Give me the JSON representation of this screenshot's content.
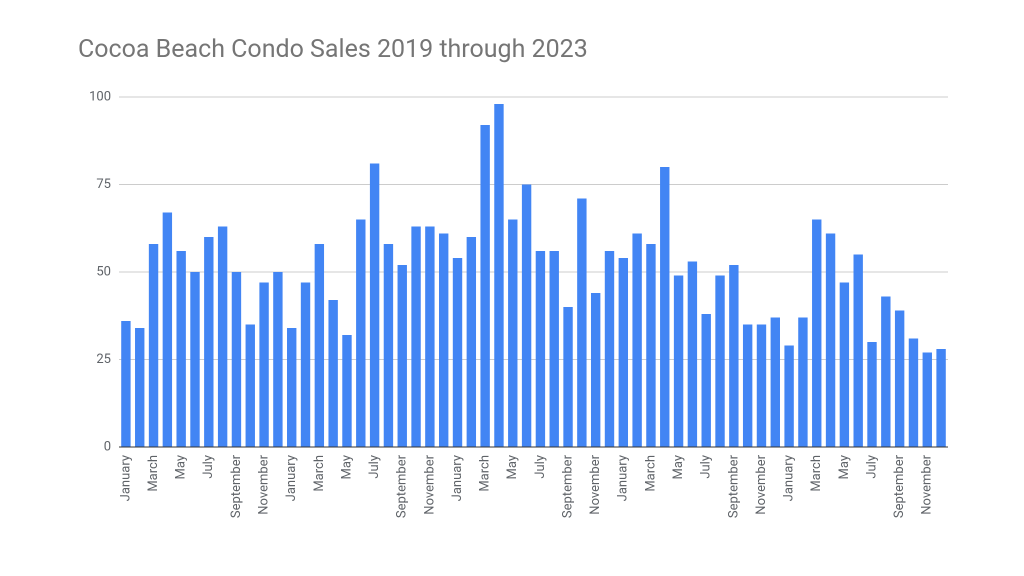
{
  "chart_data": {
    "type": "bar",
    "title": "Cocoa Beach Condo Sales 2019 through 2023",
    "categories": [
      "January",
      null,
      "March",
      null,
      "May",
      null,
      "July",
      null,
      "September",
      null,
      "November",
      null,
      "January",
      null,
      "March",
      null,
      "May",
      null,
      "July",
      null,
      "September",
      null,
      "November",
      null,
      "January",
      null,
      "March",
      null,
      "May",
      null,
      "July",
      null,
      "September",
      null,
      "November",
      null,
      "January",
      null,
      "March",
      null,
      "May",
      null,
      "July",
      null,
      "September",
      null,
      "November",
      null,
      "January",
      null,
      "March",
      null,
      "May",
      null,
      "July",
      null,
      "September",
      null,
      "November",
      null
    ],
    "values": [
      36,
      34,
      58,
      67,
      56,
      50,
      60,
      63,
      50,
      35,
      47,
      50,
      34,
      47,
      58,
      42,
      32,
      65,
      81,
      58,
      52,
      63,
      63,
      61,
      54,
      60,
      92,
      98,
      65,
      75,
      56,
      56,
      40,
      71,
      44,
      56,
      54,
      61,
      58,
      80,
      49,
      53,
      38,
      49,
      52,
      35,
      35,
      37,
      29,
      37,
      65,
      61,
      47,
      55,
      30,
      43,
      39,
      31,
      27,
      28
    ],
    "color": "#4285f4",
    "ylim": [
      0,
      100
    ],
    "yticks": [
      0,
      25,
      50,
      75,
      100
    ],
    "grid": true
  }
}
